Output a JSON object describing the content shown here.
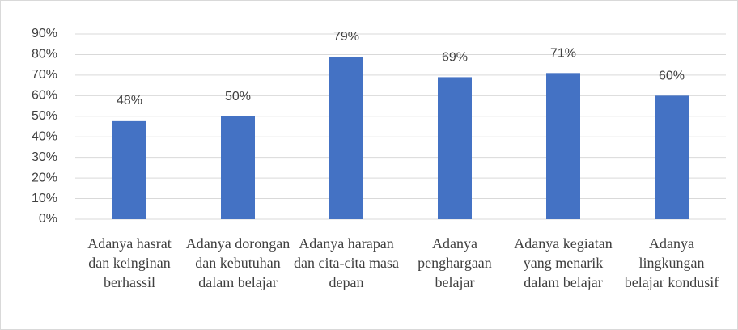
{
  "chart_data": {
    "type": "bar",
    "categories": [
      "Adanya hasrat dan keinginan berhassil",
      "Adanya dorongan dan kebutuhan dalam belajar",
      "Adanya harapan dan cita-cita masa depan",
      "Adanya penghargaan belajar",
      "Adanya kegiatan yang menarik dalam belajar",
      "Adanya lingkungan belajar kondusif"
    ],
    "values": [
      48,
      50,
      79,
      69,
      71,
      60
    ],
    "value_labels": [
      "48%",
      "50%",
      "79%",
      "69%",
      "71%",
      "60%"
    ],
    "color": "#4472c4",
    "ylim": [
      0,
      90
    ],
    "yticks": [
      {
        "value": 0,
        "label": "0%"
      },
      {
        "value": 10,
        "label": "10%"
      },
      {
        "value": 20,
        "label": "20%"
      },
      {
        "value": 30,
        "label": "30%"
      },
      {
        "value": 40,
        "label": "40%"
      },
      {
        "value": 50,
        "label": "50%"
      },
      {
        "value": 60,
        "label": "60%"
      },
      {
        "value": 70,
        "label": "70%"
      },
      {
        "value": 80,
        "label": "80%"
      },
      {
        "value": 90,
        "label": "90%"
      }
    ],
    "grid": true
  }
}
